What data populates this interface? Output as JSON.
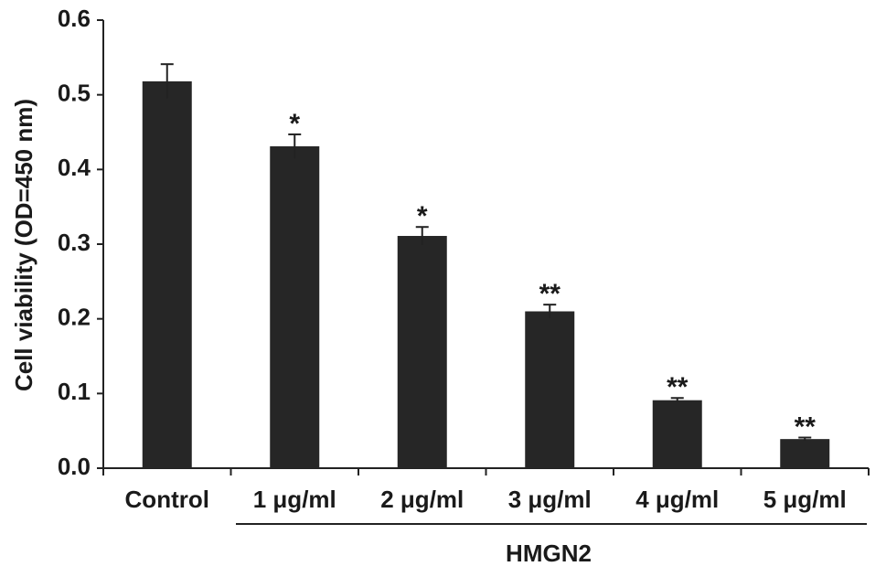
{
  "chart_data": {
    "type": "bar",
    "y_label": "Cell viability (OD=450 nm)",
    "categories": [
      "Control",
      "1 μg/ml",
      "2 μg/ml",
      "3 μg/ml",
      "4 μg/ml",
      "5 μg/ml"
    ],
    "values": [
      0.518,
      0.431,
      0.311,
      0.21,
      0.091,
      0.039
    ],
    "errors": [
      0.023,
      0.016,
      0.012,
      0.009,
      0.003,
      0.002
    ],
    "annotations": [
      null,
      "*",
      "*",
      "**",
      "**",
      "**"
    ],
    "group_label": "HMGN2",
    "color": "#262626",
    "ylim": [
      0,
      0.6
    ],
    "yticks": [
      {
        "value": 0,
        "label": "0.0"
      },
      0.1,
      0.2,
      0.3,
      0.4,
      0.5,
      0.6
    ],
    "grid": false
  }
}
